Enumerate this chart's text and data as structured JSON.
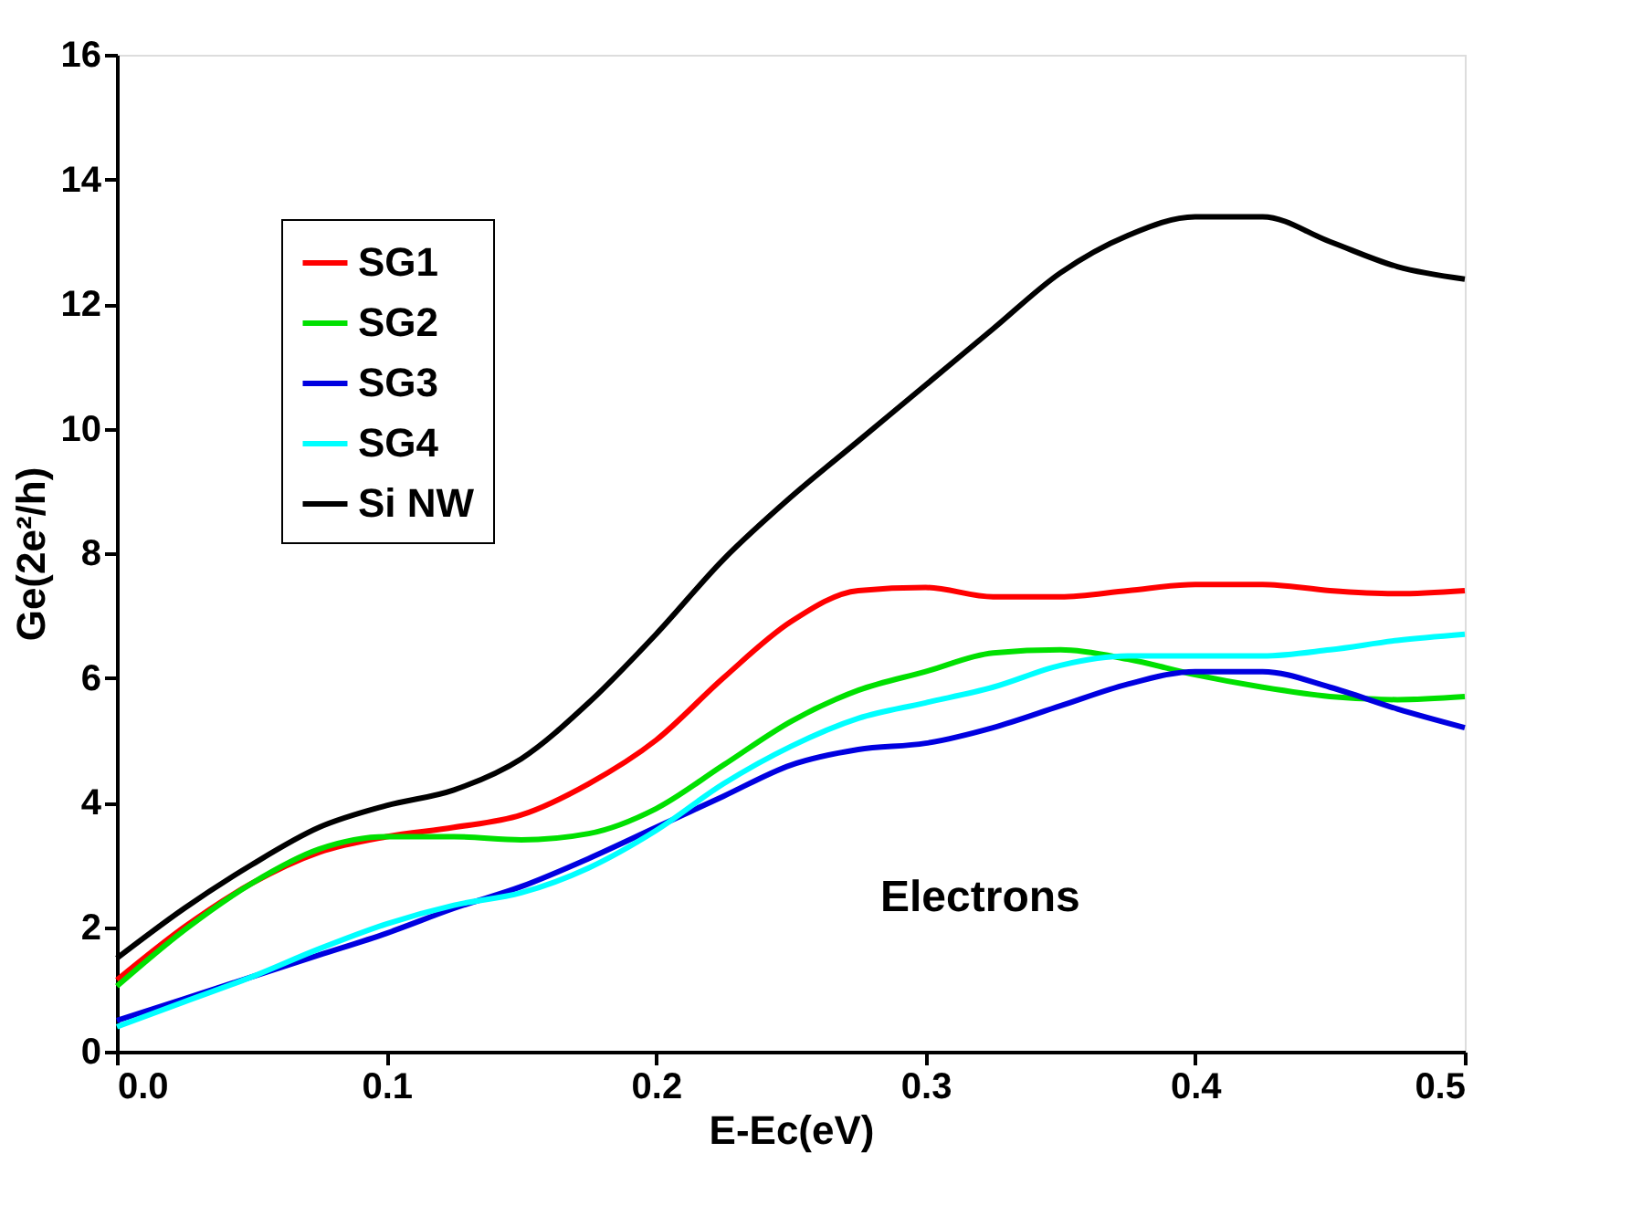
{
  "chart_data": {
    "type": "line",
    "xlabel": "E-Ec(eV)",
    "ylabel": "Ge(2e²/h)",
    "x": [
      0,
      0.025,
      0.05,
      0.075,
      0.1,
      0.125,
      0.15,
      0.175,
      0.2,
      0.225,
      0.25,
      0.275,
      0.3,
      0.325,
      0.35,
      0.375,
      0.4,
      0.425,
      0.45,
      0.475,
      0.5
    ],
    "series": [
      {
        "name": "SG1",
        "color": "#ff0000",
        "values": [
          1.15,
          2.0,
          2.7,
          3.2,
          3.45,
          3.6,
          3.8,
          4.3,
          5.0,
          6.0,
          6.9,
          7.4,
          7.45,
          7.3,
          7.3,
          7.4,
          7.5,
          7.5,
          7.4,
          7.35,
          7.4
        ]
      },
      {
        "name": "SG2",
        "color": "#00e000",
        "values": [
          1.05,
          1.95,
          2.7,
          3.25,
          3.45,
          3.45,
          3.4,
          3.5,
          3.9,
          4.6,
          5.3,
          5.8,
          6.1,
          6.4,
          6.45,
          6.3,
          6.05,
          5.85,
          5.7,
          5.65,
          5.7
        ]
      },
      {
        "name": "SG3",
        "color": "#0000e0",
        "values": [
          0.5,
          0.85,
          1.2,
          1.55,
          1.9,
          2.3,
          2.65,
          3.1,
          3.6,
          4.1,
          4.6,
          4.85,
          4.95,
          5.2,
          5.55,
          5.9,
          6.1,
          6.1,
          5.85,
          5.5,
          5.2
        ]
      },
      {
        "name": "SG4",
        "color": "#00ffff",
        "values": [
          0.4,
          0.8,
          1.2,
          1.65,
          2.05,
          2.35,
          2.55,
          2.95,
          3.55,
          4.3,
          4.9,
          5.35,
          5.6,
          5.85,
          6.2,
          6.35,
          6.35,
          6.35,
          6.45,
          6.6,
          6.7
        ]
      },
      {
        "name": "Si NW",
        "color": "#000000",
        "values": [
          1.5,
          2.3,
          3.0,
          3.6,
          3.95,
          4.2,
          4.7,
          5.6,
          6.7,
          7.9,
          8.9,
          9.8,
          10.7,
          11.6,
          12.5,
          13.1,
          13.4,
          13.4,
          13.0,
          12.6,
          12.4
        ]
      }
    ],
    "xlim": [
      0,
      0.5
    ],
    "xticks": [
      {
        "value": 0,
        "label": "0.0"
      },
      0.1,
      0.2,
      0.3,
      0.4,
      0.5
    ],
    "ylim": [
      0,
      16
    ],
    "yticks": [
      0,
      2,
      4,
      6,
      8,
      10,
      12,
      14,
      16
    ],
    "annotations": [
      "Electrons"
    ],
    "legend": "top left",
    "grid": false,
    "line_style": "solid",
    "marker": "none"
  }
}
